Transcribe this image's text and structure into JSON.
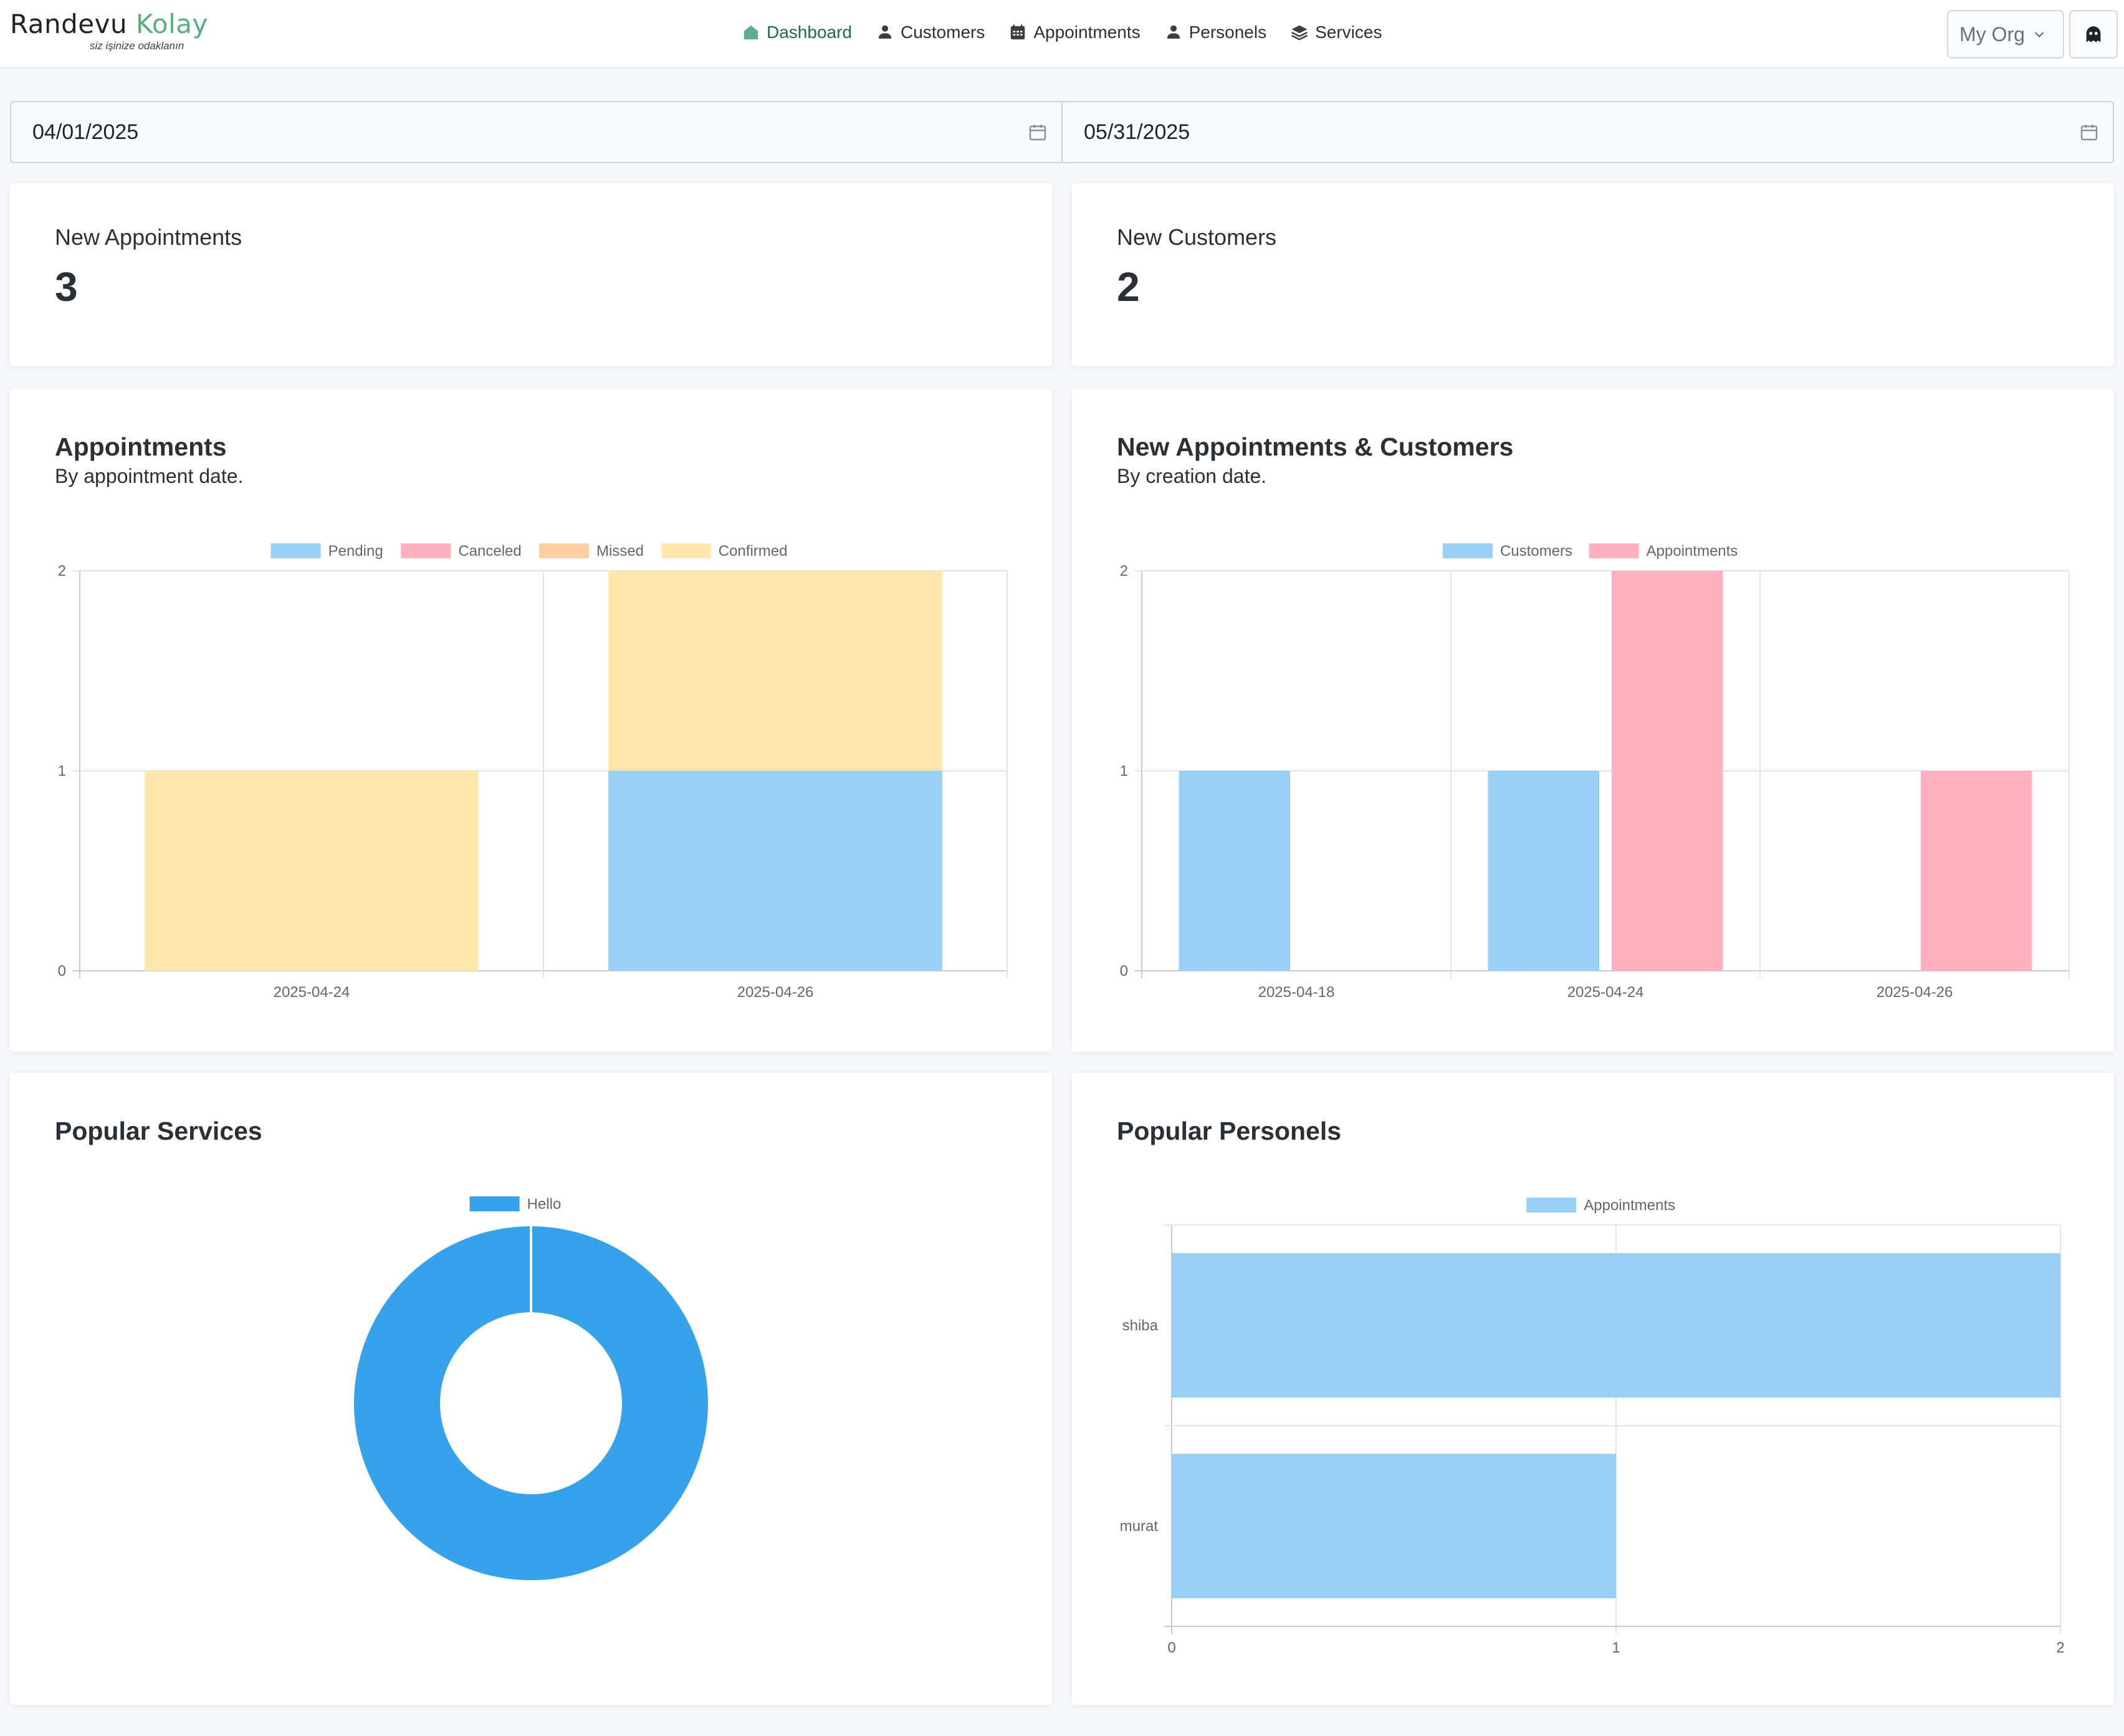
{
  "brand": {
    "name_part1": "Randevu",
    "name_part2": "Kolay",
    "tagline": "siz işinize odaklanın"
  },
  "nav": {
    "items": [
      {
        "label": "Dashboard",
        "icon": "home-icon",
        "active": true
      },
      {
        "label": "Customers",
        "icon": "users-icon"
      },
      {
        "label": "Appointments",
        "icon": "calendar-grid-icon"
      },
      {
        "label": "Personels",
        "icon": "users-icon"
      },
      {
        "label": "Services",
        "icon": "layers-icon"
      }
    ],
    "org_select": "My Org",
    "profile_icon": "ghost-icon",
    "active_color": "#1e6b49"
  },
  "date_range": {
    "start": "04/01/2025",
    "end": "05/31/2025"
  },
  "stats": [
    {
      "label": "New Appointments",
      "value": "3"
    },
    {
      "label": "New Customers",
      "value": "2"
    }
  ],
  "cards": {
    "appointments": {
      "title": "Appointments",
      "subtitle": "By appointment date."
    },
    "new_items": {
      "title": "New Appointments & Customers",
      "subtitle": "By creation date."
    },
    "services": {
      "title": "Popular Services"
    },
    "personels": {
      "title": "Popular Personels"
    }
  },
  "chart_data": [
    {
      "id": "appointments",
      "type": "bar",
      "stacked": true,
      "categories": [
        "2025-04-24",
        "2025-04-26"
      ],
      "series": [
        {
          "name": "Pending",
          "values": [
            0,
            1
          ],
          "color": "#9ad0f5",
          "border": "#36a2eb"
        },
        {
          "name": "Canceled",
          "values": [
            0,
            0
          ],
          "color": "#ffb1c1",
          "border": "#ff6384"
        },
        {
          "name": "Missed",
          "values": [
            0,
            0
          ],
          "color": "#ffcf9f",
          "border": "#ff9f40"
        },
        {
          "name": "Confirmed",
          "values": [
            1,
            1
          ],
          "color": "#ffe6aa",
          "border": "#ffcd56"
        }
      ],
      "ylim": [
        0,
        2
      ],
      "yticks": [
        "0",
        "1",
        "2"
      ],
      "legend": "top",
      "grid": true
    },
    {
      "id": "new_items",
      "type": "bar",
      "stacked": false,
      "categories": [
        "2025-04-18",
        "2025-04-24",
        "2025-04-26"
      ],
      "series": [
        {
          "name": "Customers",
          "values": [
            1,
            1,
            0
          ],
          "color": "#9ad0f5",
          "border": "#36a2eb"
        },
        {
          "name": "Appointments",
          "values": [
            0,
            2,
            1
          ],
          "color": "#ffb1c1",
          "border": "#ff6384"
        }
      ],
      "ylim": [
        0,
        2
      ],
      "yticks": [
        "0",
        "1",
        "2"
      ],
      "legend": "top",
      "grid": true
    },
    {
      "id": "services",
      "type": "pie",
      "donut": true,
      "labels": [
        "Hello"
      ],
      "values": [
        3
      ],
      "colors": [
        "#36a2eb"
      ],
      "legend": "top"
    },
    {
      "id": "personels",
      "type": "bar",
      "orientation": "horizontal",
      "categories": [
        "shiba",
        "murat"
      ],
      "series": [
        {
          "name": "Appointments",
          "values": [
            2,
            1
          ],
          "color": "#9ad0f5",
          "border": "#36a2eb"
        }
      ],
      "xlim": [
        0,
        2
      ],
      "xticks": [
        "0",
        "1",
        "2"
      ],
      "legend": "top",
      "grid": true
    }
  ]
}
